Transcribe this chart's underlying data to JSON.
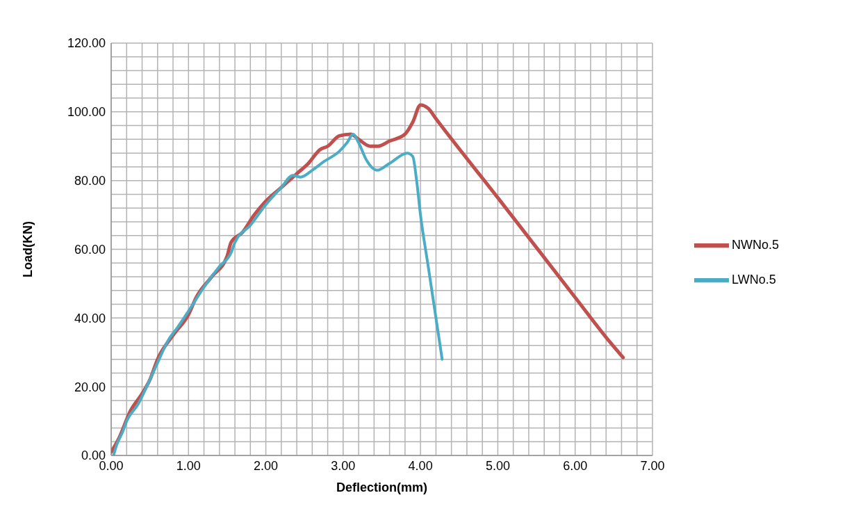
{
  "chart_data": {
    "type": "line",
    "xlabel": "Deflection(mm)",
    "ylabel": "Load(KN)",
    "xlim": [
      0,
      7
    ],
    "ylim": [
      0,
      120
    ],
    "xticks": [
      {
        "value": 0,
        "label": "0.00"
      },
      {
        "value": 0.2,
        "label": null
      },
      {
        "value": 0.4,
        "label": null
      },
      {
        "value": 0.6,
        "label": null
      },
      {
        "value": 0.8,
        "label": null
      },
      {
        "value": 1,
        "label": "1.00"
      },
      {
        "value": 1.2,
        "label": null
      },
      {
        "value": 1.4,
        "label": null
      },
      {
        "value": 1.6,
        "label": null
      },
      {
        "value": 1.8,
        "label": null
      },
      {
        "value": 2,
        "label": "2.00"
      },
      {
        "value": 2.2,
        "label": null
      },
      {
        "value": 2.4,
        "label": null
      },
      {
        "value": 2.6,
        "label": null
      },
      {
        "value": 2.8,
        "label": null
      },
      {
        "value": 3,
        "label": "3.00"
      },
      {
        "value": 3.2,
        "label": null
      },
      {
        "value": 3.4,
        "label": null
      },
      {
        "value": 3.6,
        "label": null
      },
      {
        "value": 3.8,
        "label": null
      },
      {
        "value": 4,
        "label": "4.00"
      },
      {
        "value": 4.2,
        "label": null
      },
      {
        "value": 4.4,
        "label": null
      },
      {
        "value": 4.6,
        "label": null
      },
      {
        "value": 4.8,
        "label": null
      },
      {
        "value": 5,
        "label": "5.00"
      },
      {
        "value": 5.2,
        "label": null
      },
      {
        "value": 5.4,
        "label": null
      },
      {
        "value": 5.6,
        "label": null
      },
      {
        "value": 5.8,
        "label": null
      },
      {
        "value": 6,
        "label": "6.00"
      },
      {
        "value": 6.2,
        "label": null
      },
      {
        "value": 6.4,
        "label": null
      },
      {
        "value": 6.6,
        "label": null
      },
      {
        "value": 6.8,
        "label": null
      },
      {
        "value": 7,
        "label": "7.00"
      }
    ],
    "yticks": [
      {
        "value": 0,
        "label": "0.00"
      },
      {
        "value": 4,
        "label": null
      },
      {
        "value": 8,
        "label": null
      },
      {
        "value": 12,
        "label": null
      },
      {
        "value": 16,
        "label": null
      },
      {
        "value": 20,
        "label": "20.00"
      },
      {
        "value": 24,
        "label": null
      },
      {
        "value": 28,
        "label": null
      },
      {
        "value": 32,
        "label": null
      },
      {
        "value": 36,
        "label": null
      },
      {
        "value": 40,
        "label": "40.00"
      },
      {
        "value": 44,
        "label": null
      },
      {
        "value": 48,
        "label": null
      },
      {
        "value": 52,
        "label": null
      },
      {
        "value": 56,
        "label": null
      },
      {
        "value": 60,
        "label": "60.00"
      },
      {
        "value": 64,
        "label": null
      },
      {
        "value": 68,
        "label": null
      },
      {
        "value": 72,
        "label": null
      },
      {
        "value": 76,
        "label": null
      },
      {
        "value": 80,
        "label": "80.00"
      },
      {
        "value": 84,
        "label": null
      },
      {
        "value": 88,
        "label": null
      },
      {
        "value": 92,
        "label": null
      },
      {
        "value": 96,
        "label": null
      },
      {
        "value": 100,
        "label": "100.00"
      },
      {
        "value": 104,
        "label": null
      },
      {
        "value": 108,
        "label": null
      },
      {
        "value": 112,
        "label": null
      },
      {
        "value": 116,
        "label": null
      },
      {
        "value": 120,
        "label": "120.00"
      }
    ],
    "grid": true,
    "legend": "right",
    "marker": "none",
    "line_style": "solid",
    "series": [
      {
        "name": "NWNo.5",
        "color": "#c0504d",
        "x": [
          0,
          0.1,
          0.25,
          0.4,
          0.5,
          0.6,
          0.8,
          1.0,
          1.1,
          1.3,
          1.5,
          1.55,
          1.7,
          1.85,
          2.0,
          2.2,
          2.4,
          2.55,
          2.7,
          2.8,
          2.95,
          3.1,
          3.2,
          3.35,
          3.45,
          3.6,
          3.8,
          3.9,
          4.0,
          4.1,
          4.2,
          5.0,
          6.0,
          6.45,
          6.62
        ],
        "values": [
          1,
          5,
          13,
          18,
          22,
          28,
          35,
          41,
          46,
          52,
          58,
          62,
          65,
          70,
          74,
          78,
          82,
          85,
          89,
          90,
          93,
          93.5,
          92,
          90,
          90,
          91.5,
          93.5,
          97,
          102,
          101,
          98,
          75,
          46,
          33,
          28.5
        ]
      },
      {
        "name": "LWNo.5",
        "color": "#4bacc6",
        "x": [
          0.03,
          0.07,
          0.15,
          0.2,
          0.35,
          0.5,
          0.6,
          0.75,
          0.85,
          1.0,
          1.2,
          1.4,
          1.55,
          1.6,
          1.8,
          2.0,
          2.2,
          2.35,
          2.45,
          2.6,
          2.75,
          2.95,
          3.05,
          3.13,
          3.2,
          3.3,
          3.44,
          3.6,
          3.83,
          3.9,
          3.95,
          4.0,
          4.1,
          4.2,
          4.28
        ],
        "values": [
          0,
          3,
          7,
          10,
          15,
          22,
          27,
          34,
          37,
          42,
          49,
          55,
          59,
          62,
          67,
          73,
          78,
          81.5,
          81,
          83,
          85.5,
          88.5,
          91,
          93.5,
          91,
          86,
          83,
          85,
          88,
          87,
          80,
          70,
          55,
          40,
          28
        ]
      }
    ]
  }
}
